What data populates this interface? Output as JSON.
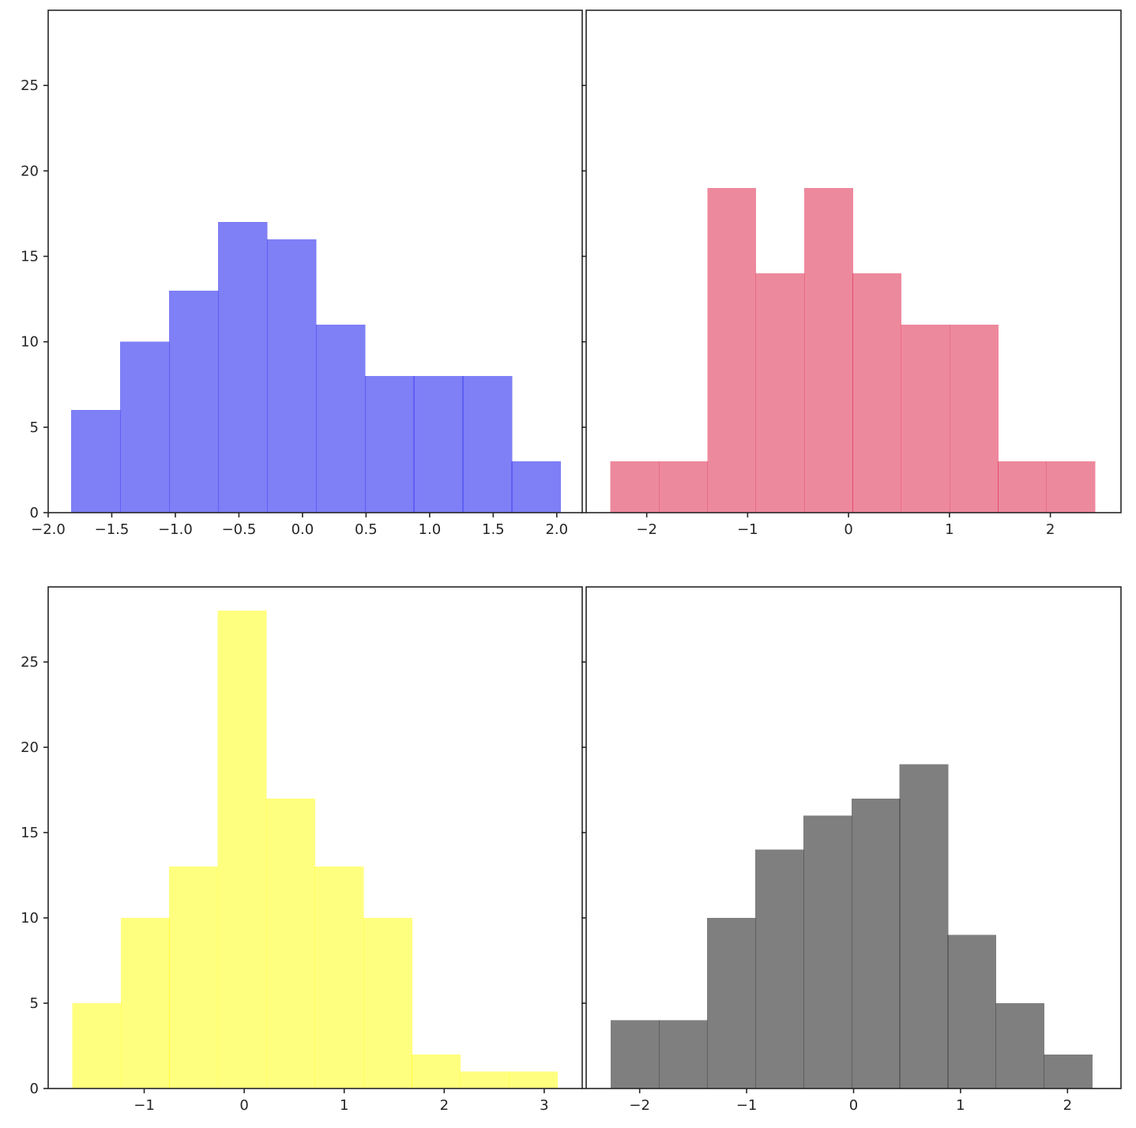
{
  "chart_data": [
    {
      "type": "bar",
      "subplot": "top-left",
      "color": "#0000ee",
      "alpha": 0.5,
      "bin_edges": [
        -1.82,
        -1.435,
        -1.05,
        -0.665,
        -0.28,
        0.105,
        0.49,
        0.875,
        1.26,
        1.645,
        2.03
      ],
      "values": [
        6,
        10,
        13,
        17,
        16,
        11,
        8,
        8,
        8,
        3
      ],
      "xlim": [
        -2.0,
        2.2
      ],
      "ylim": [
        0,
        29.4
      ],
      "xticks": [
        -2.0,
        -1.5,
        -1.0,
        -0.5,
        0.0,
        0.5,
        1.0,
        1.5,
        2.0
      ],
      "xtick_labels": [
        "−2.0",
        "−1.5",
        "−1.0",
        "−0.5",
        "0.0",
        "0.5",
        "1.0",
        "1.5",
        "2.0"
      ],
      "yticks": [
        0,
        5,
        10,
        15,
        20,
        25
      ],
      "ytick_labels": [
        "0",
        "5",
        "10",
        "15",
        "20",
        "25"
      ]
    },
    {
      "type": "bar",
      "subplot": "top-right",
      "color": "#dc143c",
      "alpha": 0.5,
      "bin_edges": [
        -2.36,
        -1.88,
        -1.4,
        -0.92,
        -0.44,
        0.04,
        0.52,
        1.0,
        1.48,
        1.96,
        2.44
      ],
      "values": [
        3,
        3,
        19,
        14,
        19,
        14,
        11,
        11,
        3,
        3
      ],
      "xlim": [
        -2.6,
        2.7
      ],
      "ylim": [
        0,
        29.4
      ],
      "xticks": [
        -2,
        -1,
        0,
        1,
        2
      ],
      "xtick_labels": [
        "−2",
        "−1",
        "0",
        "1",
        "2"
      ],
      "yticks": [
        0,
        5,
        10,
        15,
        20,
        25
      ],
      "ytick_labels": [
        "",
        "",
        "",
        "",
        "",
        ""
      ]
    },
    {
      "type": "bar",
      "subplot": "bottom-left",
      "color": "#ffff00",
      "alpha": 0.5,
      "bin_edges": [
        -1.72,
        -1.235,
        -0.75,
        -0.265,
        0.22,
        0.705,
        1.19,
        1.675,
        2.16,
        2.645,
        3.13
      ],
      "values": [
        5,
        10,
        13,
        28,
        17,
        13,
        10,
        2,
        1,
        1
      ],
      "xlim": [
        -1.96,
        3.38
      ],
      "ylim": [
        0,
        29.4
      ],
      "xticks": [
        -1,
        0,
        1,
        2,
        3
      ],
      "xtick_labels": [
        "−1",
        "0",
        "1",
        "2",
        "3"
      ],
      "yticks": [
        0,
        5,
        10,
        15,
        20,
        25
      ],
      "ytick_labels": [
        "0",
        "5",
        "10",
        "15",
        "20",
        "25"
      ]
    },
    {
      "type": "bar",
      "subplot": "bottom-right",
      "color": "#000000",
      "alpha": 0.5,
      "bin_edges": [
        -2.27,
        -1.82,
        -1.37,
        -0.92,
        -0.47,
        -0.02,
        0.43,
        0.88,
        1.33,
        1.78,
        2.23
      ],
      "values": [
        4,
        4,
        10,
        14,
        16,
        17,
        19,
        9,
        5,
        2
      ],
      "xlim": [
        -2.5,
        2.5
      ],
      "ylim": [
        0,
        29.4
      ],
      "xticks": [
        -2,
        -1,
        0,
        1,
        2
      ],
      "xtick_labels": [
        "−2",
        "−1",
        "0",
        "1",
        "2"
      ],
      "yticks": [
        0,
        5,
        10,
        15,
        20,
        25
      ],
      "ytick_labels": [
        "",
        "",
        "",
        "",
        "",
        ""
      ]
    }
  ]
}
